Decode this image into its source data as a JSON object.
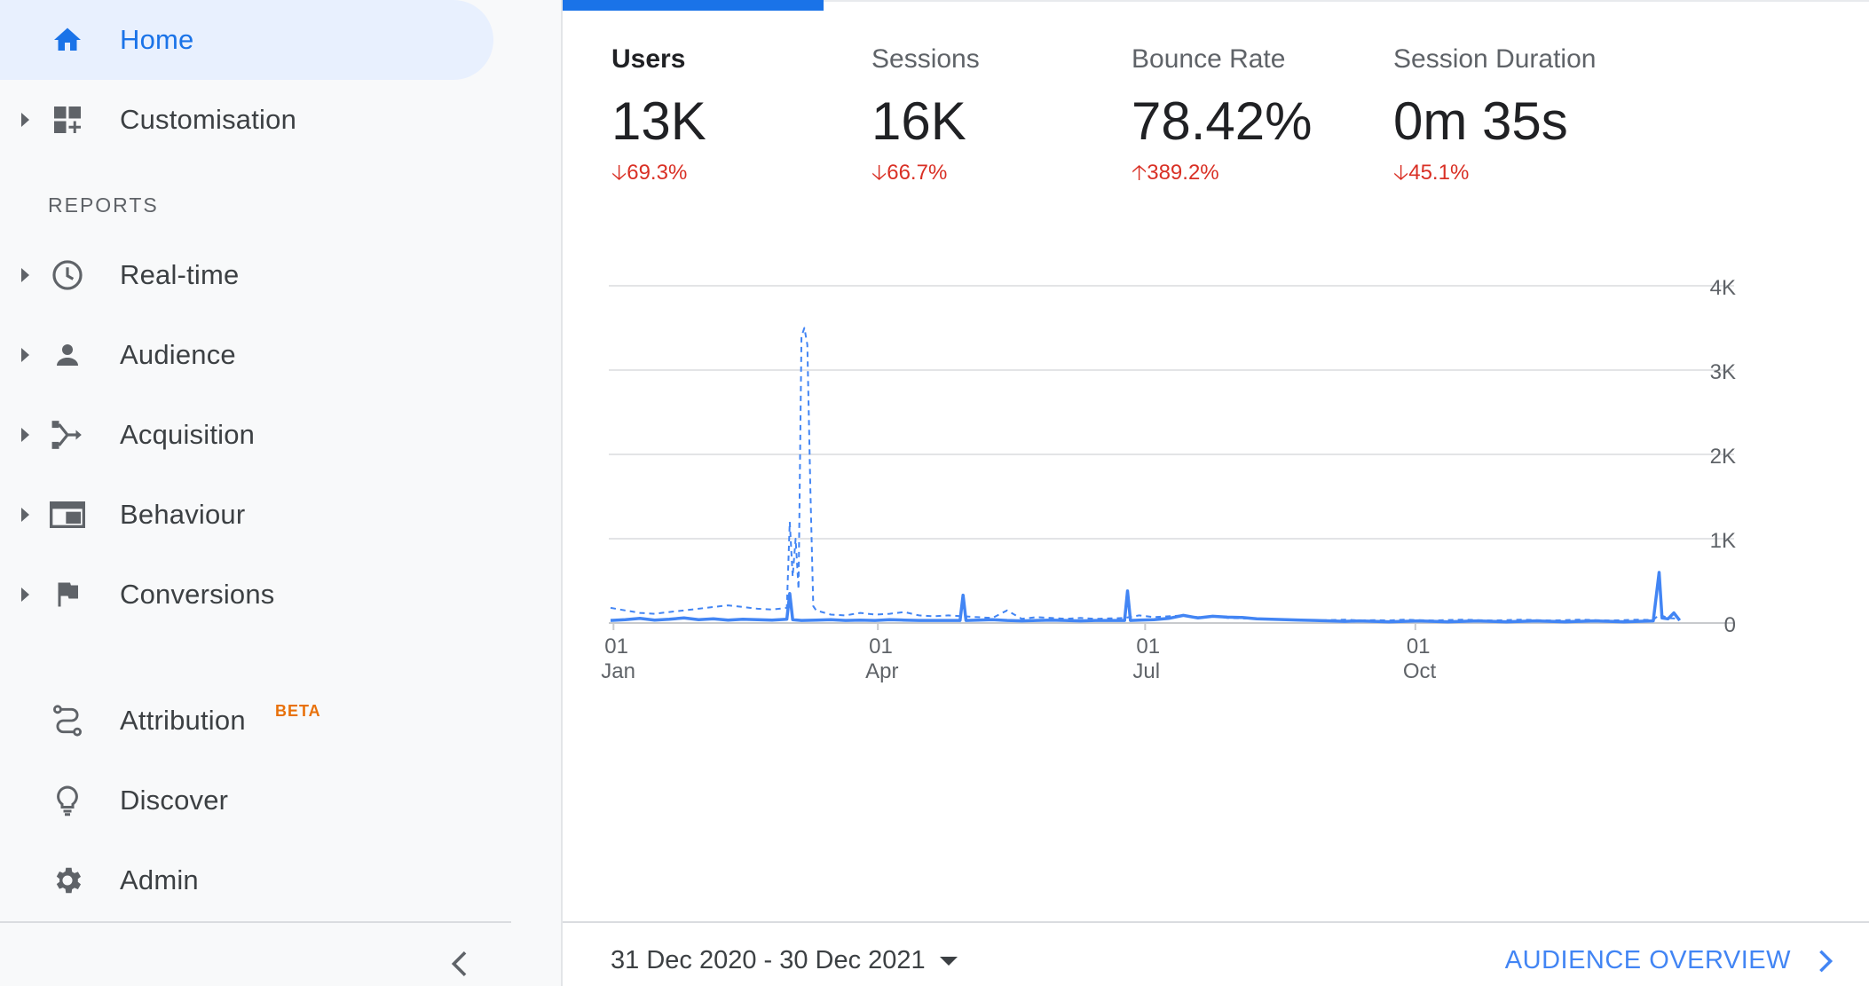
{
  "sidebar": {
    "home_label": "Home",
    "customisation_label": "Customisation",
    "reports_section": "REPORTS",
    "realtime_label": "Real-time",
    "audience_label": "Audience",
    "acquisition_label": "Acquisition",
    "behaviour_label": "Behaviour",
    "conversions_label": "Conversions",
    "attribution_label": "Attribution",
    "attribution_badge": "BETA",
    "discover_label": "Discover",
    "admin_label": "Admin"
  },
  "metrics": [
    {
      "label": "Users",
      "value": "13K",
      "change": "69.3%",
      "direction": "down"
    },
    {
      "label": "Sessions",
      "value": "16K",
      "change": "66.7%",
      "direction": "down"
    },
    {
      "label": "Bounce Rate",
      "value": "78.42%",
      "change": "389.2%",
      "direction": "up"
    },
    {
      "label": "Session Duration",
      "value": "0m 35s",
      "change": "45.1%",
      "direction": "down"
    }
  ],
  "footer": {
    "date_range": "31 Dec 2020 - 30 Dec 2021",
    "overview_link": "AUDIENCE OVERVIEW"
  },
  "colors": {
    "accent": "#1a73e8",
    "series": "#4285f4",
    "negative": "#d93025",
    "beta": "#e8710a"
  },
  "chart_data": {
    "type": "line",
    "title": "",
    "ylim": [
      0,
      4000
    ],
    "y_ticks": [
      0,
      1000,
      2000,
      3000,
      4000
    ],
    "y_tick_labels": [
      "0",
      "1K",
      "2K",
      "3K",
      "4K"
    ],
    "x_ticks": [
      {
        "day": 1,
        "day_label": "01",
        "month_label": "Jan"
      },
      {
        "day": 91,
        "day_label": "01",
        "month_label": "Apr"
      },
      {
        "day": 182,
        "day_label": "01",
        "month_label": "Jul"
      },
      {
        "day": 274,
        "day_label": "01",
        "month_label": "Oct"
      }
    ],
    "x_range": [
      0,
      365
    ],
    "grid": true,
    "series": [
      {
        "style": "solid",
        "points": [
          [
            0,
            30
          ],
          [
            5,
            40
          ],
          [
            10,
            55
          ],
          [
            15,
            35
          ],
          [
            20,
            45
          ],
          [
            25,
            60
          ],
          [
            30,
            40
          ],
          [
            35,
            50
          ],
          [
            40,
            35
          ],
          [
            45,
            45
          ],
          [
            50,
            40
          ],
          [
            55,
            35
          ],
          [
            60,
            45
          ],
          [
            61,
            350
          ],
          [
            62,
            40
          ],
          [
            65,
            30
          ],
          [
            70,
            35
          ],
          [
            75,
            40
          ],
          [
            80,
            30
          ],
          [
            85,
            35
          ],
          [
            90,
            30
          ],
          [
            95,
            40
          ],
          [
            100,
            35
          ],
          [
            105,
            30
          ],
          [
            110,
            30
          ],
          [
            119,
            30
          ],
          [
            120,
            330
          ],
          [
            121,
            30
          ],
          [
            125,
            35
          ],
          [
            130,
            40
          ],
          [
            135,
            30
          ],
          [
            140,
            25
          ],
          [
            145,
            30
          ],
          [
            150,
            35
          ],
          [
            155,
            30
          ],
          [
            160,
            25
          ],
          [
            165,
            30
          ],
          [
            170,
            30
          ],
          [
            175,
            30
          ],
          [
            176,
            380
          ],
          [
            177,
            30
          ],
          [
            180,
            35
          ],
          [
            185,
            40
          ],
          [
            190,
            55
          ],
          [
            195,
            90
          ],
          [
            200,
            60
          ],
          [
            205,
            80
          ],
          [
            210,
            70
          ],
          [
            215,
            65
          ],
          [
            220,
            50
          ],
          [
            225,
            45
          ],
          [
            230,
            40
          ],
          [
            235,
            35
          ],
          [
            240,
            30
          ],
          [
            245,
            25
          ],
          [
            250,
            20
          ],
          [
            255,
            25
          ],
          [
            260,
            20
          ],
          [
            265,
            15
          ],
          [
            270,
            20
          ],
          [
            275,
            25
          ],
          [
            280,
            20
          ],
          [
            285,
            15
          ],
          [
            290,
            20
          ],
          [
            295,
            25
          ],
          [
            300,
            20
          ],
          [
            305,
            15
          ],
          [
            310,
            20
          ],
          [
            315,
            25
          ],
          [
            320,
            20
          ],
          [
            325,
            15
          ],
          [
            330,
            20
          ],
          [
            335,
            25
          ],
          [
            340,
            20
          ],
          [
            345,
            15
          ],
          [
            350,
            20
          ],
          [
            355,
            25
          ],
          [
            357,
            600
          ],
          [
            358,
            60
          ],
          [
            360,
            50
          ],
          [
            362,
            120
          ],
          [
            364,
            30
          ]
        ]
      },
      {
        "style": "dashed",
        "points": [
          [
            0,
            180
          ],
          [
            5,
            150
          ],
          [
            10,
            120
          ],
          [
            15,
            110
          ],
          [
            20,
            130
          ],
          [
            25,
            150
          ],
          [
            30,
            170
          ],
          [
            35,
            190
          ],
          [
            40,
            210
          ],
          [
            45,
            190
          ],
          [
            50,
            170
          ],
          [
            55,
            160
          ],
          [
            60,
            180
          ],
          [
            61,
            1200
          ],
          [
            62,
            550
          ],
          [
            63,
            1000
          ],
          [
            64,
            400
          ],
          [
            65,
            3400
          ],
          [
            66,
            3500
          ],
          [
            67,
            3300
          ],
          [
            68,
            1600
          ],
          [
            69,
            200
          ],
          [
            70,
            150
          ],
          [
            75,
            100
          ],
          [
            80,
            90
          ],
          [
            85,
            120
          ],
          [
            90,
            100
          ],
          [
            95,
            110
          ],
          [
            100,
            130
          ],
          [
            105,
            90
          ],
          [
            110,
            80
          ],
          [
            115,
            90
          ],
          [
            120,
            80
          ],
          [
            125,
            70
          ],
          [
            130,
            60
          ],
          [
            135,
            150
          ],
          [
            140,
            50
          ],
          [
            145,
            70
          ],
          [
            150,
            60
          ],
          [
            155,
            50
          ],
          [
            160,
            60
          ],
          [
            165,
            50
          ],
          [
            170,
            55
          ],
          [
            175,
            60
          ],
          [
            180,
            90
          ],
          [
            185,
            70
          ],
          [
            190,
            80
          ],
          [
            195,
            90
          ],
          [
            200,
            70
          ],
          [
            205,
            80
          ],
          [
            210,
            60
          ],
          [
            215,
            55
          ],
          [
            220,
            50
          ],
          [
            225,
            45
          ],
          [
            230,
            40
          ],
          [
            235,
            35
          ],
          [
            240,
            30
          ],
          [
            245,
            35
          ],
          [
            250,
            40
          ],
          [
            255,
            30
          ],
          [
            260,
            35
          ],
          [
            265,
            30
          ],
          [
            270,
            40
          ],
          [
            275,
            35
          ],
          [
            280,
            30
          ],
          [
            285,
            35
          ],
          [
            290,
            40
          ],
          [
            295,
            35
          ],
          [
            300,
            30
          ],
          [
            305,
            35
          ],
          [
            310,
            40
          ],
          [
            315,
            35
          ],
          [
            320,
            30
          ],
          [
            325,
            35
          ],
          [
            330,
            40
          ],
          [
            335,
            35
          ],
          [
            340,
            30
          ],
          [
            345,
            35
          ],
          [
            350,
            40
          ],
          [
            355,
            35
          ],
          [
            357,
            100
          ],
          [
            360,
            60
          ],
          [
            364,
            50
          ]
        ]
      }
    ]
  }
}
